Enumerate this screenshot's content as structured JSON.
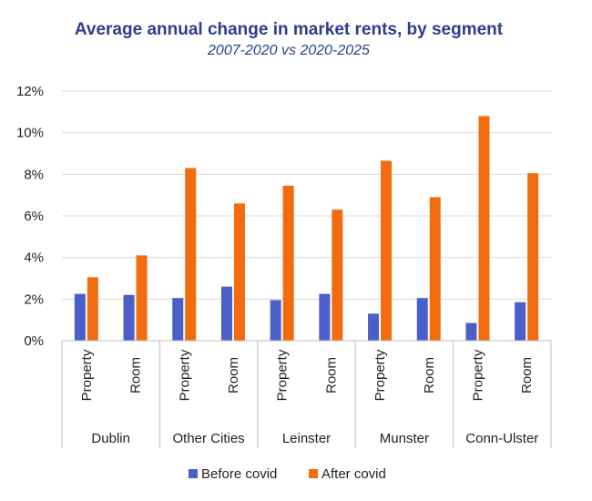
{
  "chart_data": {
    "type": "bar",
    "title": "Average annual change in market rents, by segment",
    "subtitle": "2007-2020 vs 2020-2025",
    "xlabel": "",
    "ylabel": "",
    "ylim": [
      0,
      12
    ],
    "y_ticks": [
      "0%",
      "2%",
      "4%",
      "6%",
      "8%",
      "10%",
      "12%"
    ],
    "groups": [
      "Dublin",
      "Other Cities",
      "Leinster",
      "Munster",
      "Conn-Ulster"
    ],
    "categories": [
      "Property",
      "Room",
      "Property",
      "Room",
      "Property",
      "Room",
      "Property",
      "Room",
      "Property",
      "Room"
    ],
    "series": [
      {
        "name": "Before covid",
        "color": "#4A5FC8",
        "values": [
          2.25,
          2.2,
          2.05,
          2.6,
          1.95,
          2.25,
          1.3,
          2.05,
          0.85,
          1.85
        ]
      },
      {
        "name": "After covid",
        "color": "#F26B0F",
        "values": [
          3.05,
          4.1,
          8.3,
          6.6,
          7.45,
          6.3,
          8.65,
          6.9,
          10.8,
          8.05
        ]
      }
    ],
    "grid": true,
    "legend_position": "bottom"
  }
}
